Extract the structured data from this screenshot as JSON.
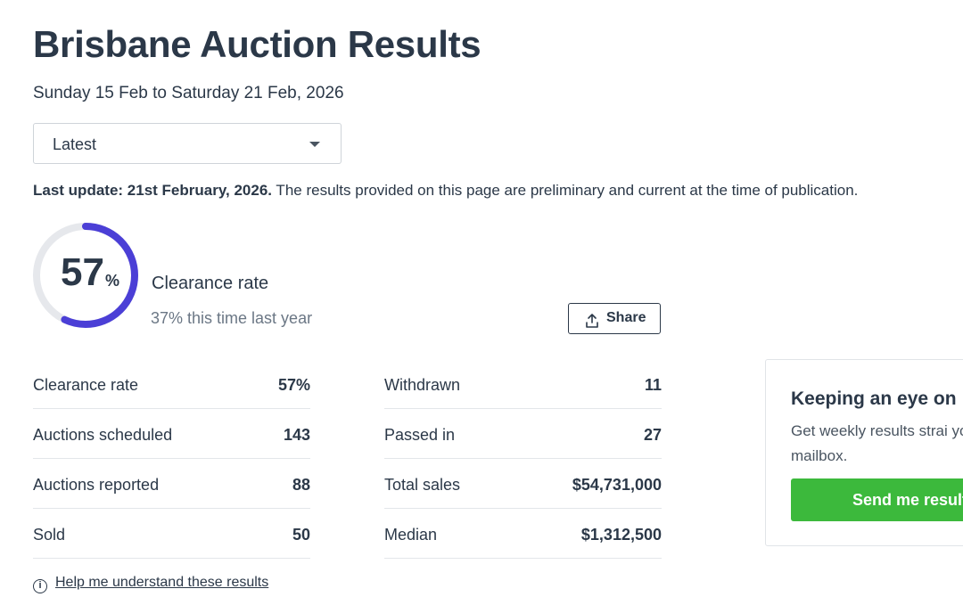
{
  "page": {
    "title": "Brisbane Auction Results",
    "date_range": "Sunday 15 Feb to Saturday 21 Feb, 2026"
  },
  "filter": {
    "selected": "Latest"
  },
  "update": {
    "label": "Last update: 21st February, 2026.",
    "note": " The results provided on this page are preliminary and current at the time of publication."
  },
  "summary": {
    "clearance_value": "57",
    "clearance_unit": "%",
    "clearance_fraction": 0.57,
    "clearance_label": "Clearance rate",
    "last_year": "37% this time last year",
    "ring_color": "#4b3fd6",
    "ring_track_color": "#e6e8ec"
  },
  "share": {
    "label": "Share",
    "icon": "share-upload-icon"
  },
  "stats": {
    "left": [
      {
        "label": "Clearance rate",
        "value": "57%"
      },
      {
        "label": "Auctions scheduled",
        "value": "143"
      },
      {
        "label": "Auctions reported",
        "value": "88"
      },
      {
        "label": "Sold",
        "value": "50"
      }
    ],
    "right": [
      {
        "label": "Withdrawn",
        "value": "11"
      },
      {
        "label": "Passed in",
        "value": "27"
      },
      {
        "label": "Total sales",
        "value": "$54,731,000"
      },
      {
        "label": "Median",
        "value": "$1,312,500"
      }
    ]
  },
  "help": {
    "icon": "info-icon",
    "link": "Help me understand these results"
  },
  "subscribe": {
    "title": "Keeping an eye on",
    "text": "Get weekly results strai your mailbox.",
    "button": "Send me result",
    "button_color": "#3cb93c"
  }
}
